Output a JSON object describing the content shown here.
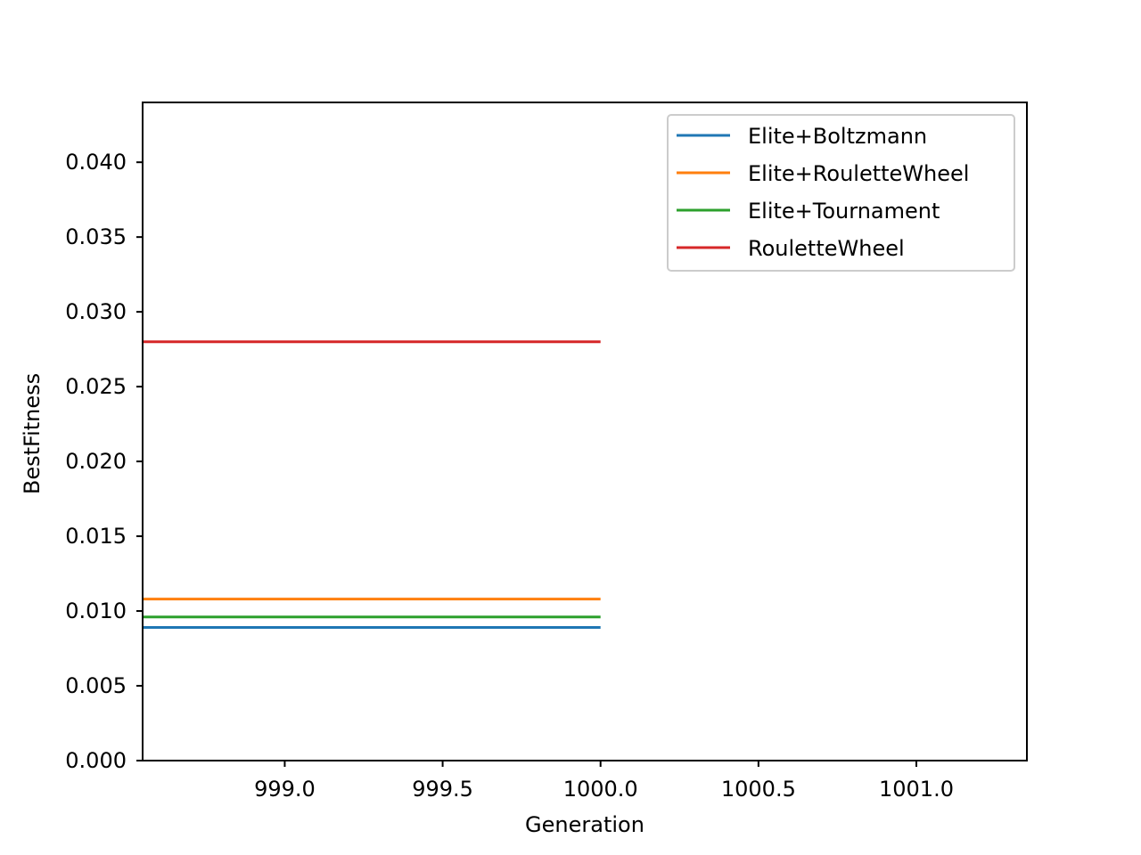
{
  "chart_data": {
    "type": "line",
    "xlabel": "Generation",
    "ylabel": "BestFitness",
    "xlim": [
      998.55,
      1001.35
    ],
    "ylim": [
      0,
      0.044
    ],
    "x_ticks": [
      999.0,
      999.5,
      1000.0,
      1000.5,
      1001.0
    ],
    "x_tick_labels": [
      "999.0",
      "999.5",
      "1000.0",
      "1000.5",
      "1001.0"
    ],
    "y_ticks": [
      0,
      0.005,
      0.01,
      0.015,
      0.02,
      0.025,
      0.03,
      0.035,
      0.04
    ],
    "y_tick_labels": [
      "0.000",
      "0.005",
      "0.010",
      "0.015",
      "0.020",
      "0.025",
      "0.030",
      "0.035",
      "0.040"
    ],
    "grid": false,
    "legend_position": "top-right",
    "series": [
      {
        "name": "Elite+Boltzmann",
        "color": "#1f77b4",
        "x": [
          998.55,
          1000.0
        ],
        "y": [
          0.0089,
          0.0089
        ]
      },
      {
        "name": "Elite+RouletteWheel",
        "color": "#ff7f0e",
        "x": [
          998.55,
          1000.0
        ],
        "y": [
          0.0108,
          0.0108
        ]
      },
      {
        "name": "Elite+Tournament",
        "color": "#2ca02c",
        "x": [
          998.55,
          1000.0
        ],
        "y": [
          0.0096,
          0.0096
        ]
      },
      {
        "name": "RouletteWheel",
        "color": "#d62728",
        "x": [
          998.55,
          1000.0
        ],
        "y": [
          0.028,
          0.028
        ]
      }
    ]
  }
}
